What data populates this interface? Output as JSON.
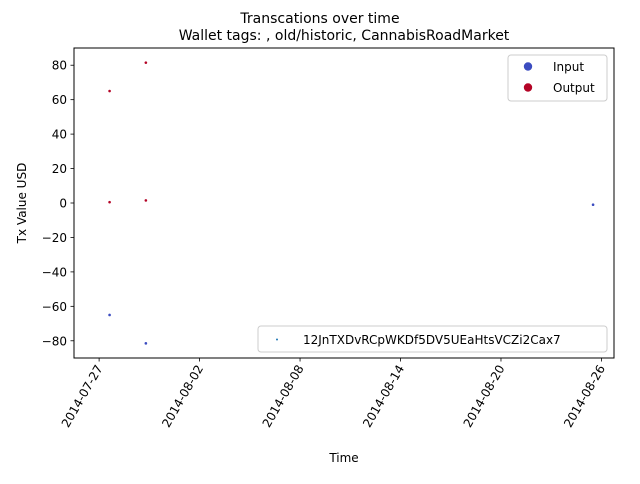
{
  "chart_data": {
    "type": "scatter",
    "title": "Transcations over time",
    "subtitle": "Wallet tags: , old/historic, CannabisRoadMarket",
    "xlabel": "Time",
    "ylabel": "Tx Value USD",
    "xlim": [
      "2014-07-25T12:00",
      "2014-08-26T18:00"
    ],
    "ylim": [
      -90,
      90
    ],
    "x_ticks": [
      {
        "date": "2014-07-27",
        "label": "2014-07-27"
      },
      {
        "date": "2014-08-02",
        "label": "2014-08-02"
      },
      {
        "date": "2014-08-08",
        "label": "2014-08-08"
      },
      {
        "date": "2014-08-14",
        "label": "2014-08-14"
      },
      {
        "date": "2014-08-20",
        "label": "2014-08-20"
      },
      {
        "date": "2014-08-26",
        "label": "2014-08-26"
      }
    ],
    "y_ticks": [
      {
        "value": 80,
        "label": "80"
      },
      {
        "value": 60,
        "label": "60"
      },
      {
        "value": 40,
        "label": "40"
      },
      {
        "value": 20,
        "label": "20"
      },
      {
        "value": 0,
        "label": "0"
      },
      {
        "value": -20,
        "label": "−20"
      },
      {
        "value": -40,
        "label": "−40"
      },
      {
        "value": -60,
        "label": "−60"
      },
      {
        "value": -80,
        "label": "−80"
      }
    ],
    "grid": false,
    "series": [
      {
        "name": "Input",
        "color": "#3b4cc0",
        "points": [
          {
            "x": "2014-07-27T15:00",
            "y": -65
          },
          {
            "x": "2014-07-29T19:00",
            "y": -81.5
          },
          {
            "x": "2014-08-25T12:00",
            "y": -1
          }
        ]
      },
      {
        "name": "Output",
        "color": "#b40426",
        "points": [
          {
            "x": "2014-07-27T15:00",
            "y": 65
          },
          {
            "x": "2014-07-27T15:00",
            "y": 0.5
          },
          {
            "x": "2014-07-29T19:00",
            "y": 81.5
          },
          {
            "x": "2014-07-29T19:00",
            "y": 1.5
          }
        ]
      }
    ],
    "legend_upper": {
      "placement": "upper-right",
      "entries": [
        {
          "label": "Input",
          "color": "#3b4cc0"
        },
        {
          "label": "Output",
          "color": "#b40426"
        }
      ]
    },
    "legend_lower": {
      "placement": "lower-right",
      "entries": [
        {
          "label": "12JnTXDvRCpWKDf5DV5UEaHtsVCZi2Cax7",
          "color": "#1f77b4"
        }
      ]
    }
  }
}
